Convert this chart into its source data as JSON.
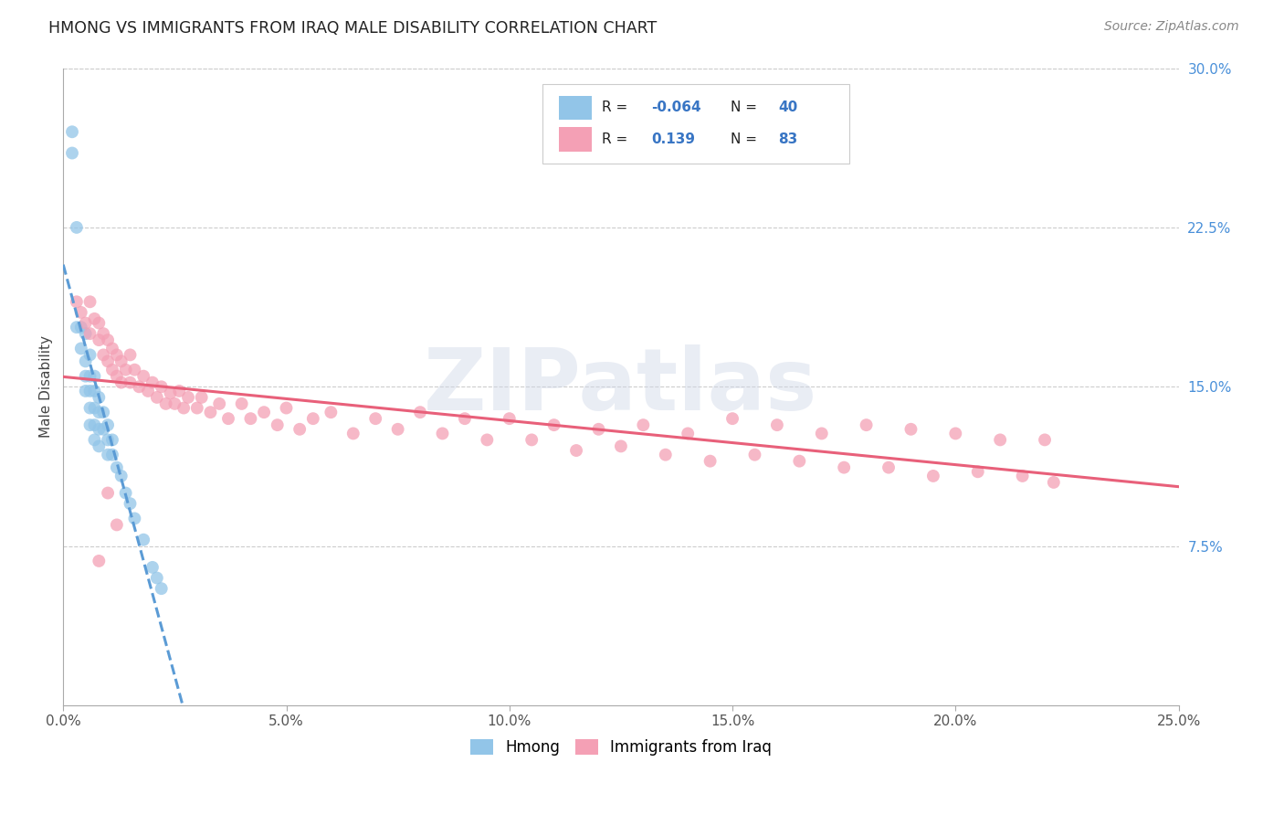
{
  "title": "HMONG VS IMMIGRANTS FROM IRAQ MALE DISABILITY CORRELATION CHART",
  "source": "Source: ZipAtlas.com",
  "ylabel": "Male Disability",
  "xlim": [
    0.0,
    0.25
  ],
  "ylim": [
    0.0,
    0.3
  ],
  "xticks": [
    0.0,
    0.05,
    0.1,
    0.15,
    0.2,
    0.25
  ],
  "yticks_right": [
    0.075,
    0.15,
    0.225,
    0.3
  ],
  "ytick_labels_right": [
    "7.5%",
    "15.0%",
    "22.5%",
    "30.0%"
  ],
  "xtick_labels": [
    "0.0%",
    "5.0%",
    "10.0%",
    "15.0%",
    "20.0%",
    "25.0%"
  ],
  "hmong_color": "#92C5E8",
  "iraq_color": "#F4A0B5",
  "hmong_line_color": "#5B9BD5",
  "iraq_line_color": "#E8607A",
  "background_color": "#FFFFFF",
  "grid_color": "#CCCCCC",
  "watermark_text": "ZIPatlas",
  "watermark_color": "#D0D8E8",
  "hmong_x": [
    0.002,
    0.002,
    0.003,
    0.003,
    0.004,
    0.004,
    0.005,
    0.005,
    0.005,
    0.005,
    0.006,
    0.006,
    0.006,
    0.006,
    0.006,
    0.007,
    0.007,
    0.007,
    0.007,
    0.007,
    0.008,
    0.008,
    0.008,
    0.008,
    0.009,
    0.009,
    0.01,
    0.01,
    0.01,
    0.011,
    0.011,
    0.012,
    0.013,
    0.014,
    0.015,
    0.016,
    0.018,
    0.02,
    0.021,
    0.022
  ],
  "hmong_y": [
    0.27,
    0.26,
    0.225,
    0.178,
    0.178,
    0.168,
    0.175,
    0.162,
    0.155,
    0.148,
    0.165,
    0.155,
    0.148,
    0.14,
    0.132,
    0.155,
    0.148,
    0.14,
    0.132,
    0.125,
    0.145,
    0.138,
    0.13,
    0.122,
    0.138,
    0.13,
    0.132,
    0.125,
    0.118,
    0.125,
    0.118,
    0.112,
    0.108,
    0.1,
    0.095,
    0.088,
    0.078,
    0.065,
    0.06,
    0.055
  ],
  "iraq_x": [
    0.003,
    0.004,
    0.005,
    0.006,
    0.006,
    0.007,
    0.008,
    0.008,
    0.009,
    0.009,
    0.01,
    0.01,
    0.011,
    0.011,
    0.012,
    0.012,
    0.013,
    0.013,
    0.014,
    0.015,
    0.015,
    0.016,
    0.017,
    0.018,
    0.019,
    0.02,
    0.021,
    0.022,
    0.023,
    0.024,
    0.025,
    0.026,
    0.027,
    0.028,
    0.03,
    0.031,
    0.033,
    0.035,
    0.037,
    0.04,
    0.042,
    0.045,
    0.048,
    0.05,
    0.053,
    0.056,
    0.06,
    0.065,
    0.07,
    0.075,
    0.08,
    0.085,
    0.09,
    0.095,
    0.1,
    0.105,
    0.11,
    0.115,
    0.12,
    0.125,
    0.13,
    0.135,
    0.14,
    0.145,
    0.15,
    0.155,
    0.16,
    0.165,
    0.17,
    0.175,
    0.18,
    0.185,
    0.19,
    0.195,
    0.2,
    0.205,
    0.21,
    0.215,
    0.22,
    0.222,
    0.008,
    0.01,
    0.012
  ],
  "iraq_y": [
    0.19,
    0.185,
    0.18,
    0.19,
    0.175,
    0.182,
    0.18,
    0.172,
    0.175,
    0.165,
    0.172,
    0.162,
    0.168,
    0.158,
    0.165,
    0.155,
    0.162,
    0.152,
    0.158,
    0.165,
    0.152,
    0.158,
    0.15,
    0.155,
    0.148,
    0.152,
    0.145,
    0.15,
    0.142,
    0.147,
    0.142,
    0.148,
    0.14,
    0.145,
    0.14,
    0.145,
    0.138,
    0.142,
    0.135,
    0.142,
    0.135,
    0.138,
    0.132,
    0.14,
    0.13,
    0.135,
    0.138,
    0.128,
    0.135,
    0.13,
    0.138,
    0.128,
    0.135,
    0.125,
    0.135,
    0.125,
    0.132,
    0.12,
    0.13,
    0.122,
    0.132,
    0.118,
    0.128,
    0.115,
    0.135,
    0.118,
    0.132,
    0.115,
    0.128,
    0.112,
    0.132,
    0.112,
    0.13,
    0.108,
    0.128,
    0.11,
    0.125,
    0.108,
    0.125,
    0.105,
    0.068,
    0.1,
    0.085
  ]
}
